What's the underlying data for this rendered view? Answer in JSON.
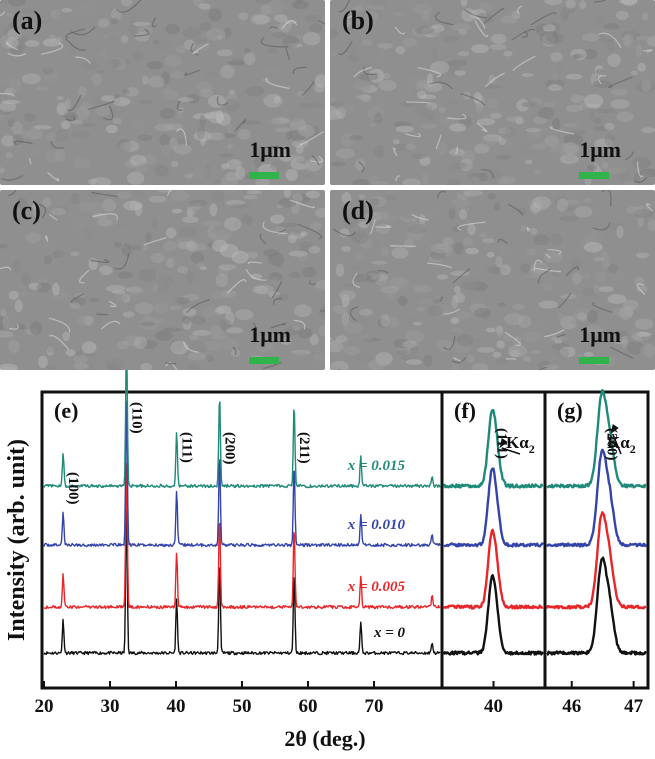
{
  "sem_panels": [
    {
      "label": "(a)",
      "scale": "1μm",
      "scale_color": "#2fb34a"
    },
    {
      "label": "(b)",
      "scale": "1μm",
      "scale_color": "#2fb34a"
    },
    {
      "label": "(c)",
      "scale": "1μm",
      "scale_color": "#2fb34a"
    },
    {
      "label": "(d)",
      "scale": "1μm",
      "scale_color": "#2fb34a"
    }
  ],
  "chart_data": {
    "type": "line",
    "ylabel": "Intensity (arb. unit)",
    "xlabel": "2θ (deg.)",
    "series": [
      {
        "name": "x = 0",
        "color": "#111111",
        "offset": 0
      },
      {
        "name": "x = 0.005",
        "color": "#e8262a",
        "offset": 1
      },
      {
        "name": "x = 0.010",
        "color": "#3344aa",
        "offset": 2
      },
      {
        "name": "x = 0.015",
        "color": "#1f8a7a",
        "offset": 3
      }
    ],
    "panels": [
      {
        "label": "(e)",
        "xlim": [
          20,
          80
        ],
        "xticks": [
          20,
          30,
          40,
          50,
          60,
          70
        ],
        "peaks": [
          {
            "pos": 22.9,
            "label": "(100)",
            "rel": 0.22
          },
          {
            "pos": 32.5,
            "label": "(110)",
            "rel": 1.0
          },
          {
            "pos": 40.1,
            "label": "(111)",
            "rel": 0.36
          },
          {
            "pos": 46.6,
            "label": "(200)",
            "rel": 0.62
          },
          {
            "pos": 57.9,
            "label": "(211)",
            "rel": 0.55
          },
          {
            "pos": 68.0,
            "label": "",
            "rel": 0.2
          },
          {
            "pos": 78.8,
            "label": "",
            "rel": 0.07
          }
        ]
      },
      {
        "label": "(f)",
        "xlim": [
          38.8,
          41.2
        ],
        "xticks": [
          40
        ],
        "peak_label": "(111)",
        "kalpha": "Kα",
        "kalpha_sub": "2"
      },
      {
        "label": "(g)",
        "xlim": [
          45.6,
          47.2
        ],
        "xticks": [
          46,
          47
        ],
        "peak_label": "(200)",
        "kalpha": "Kα",
        "kalpha_sub": "2"
      }
    ]
  }
}
